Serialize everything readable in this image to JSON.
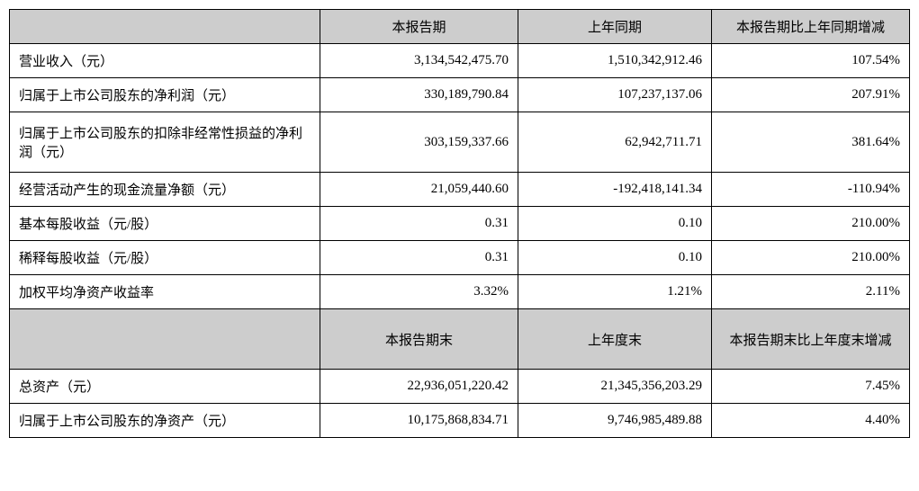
{
  "table": {
    "header1": {
      "blank": "",
      "col1": "本报告期",
      "col2": "上年同期",
      "col3": "本报告期比上年同期增减"
    },
    "rows1": [
      {
        "label": "营业收入（元）",
        "c1": "3,134,542,475.70",
        "c2": "1,510,342,912.46",
        "c3": "107.54%"
      },
      {
        "label": "归属于上市公司股东的净利润（元）",
        "c1": "330,189,790.84",
        "c2": "107,237,137.06",
        "c3": "207.91%"
      },
      {
        "label": "归属于上市公司股东的扣除非经常性损益的净利润（元）",
        "c1": "303,159,337.66",
        "c2": "62,942,711.71",
        "c3": "381.64%"
      },
      {
        "label": "经营活动产生的现金流量净额（元）",
        "c1": "21,059,440.60",
        "c2": "-192,418,141.34",
        "c3": "-110.94%"
      },
      {
        "label": "基本每股收益（元/股）",
        "c1": "0.31",
        "c2": "0.10",
        "c3": "210.00%"
      },
      {
        "label": "稀释每股收益（元/股）",
        "c1": "0.31",
        "c2": "0.10",
        "c3": "210.00%"
      },
      {
        "label": "加权平均净资产收益率",
        "c1": "3.32%",
        "c2": "1.21%",
        "c3": "2.11%"
      }
    ],
    "header2": {
      "blank": "",
      "col1": "本报告期末",
      "col2": "上年度末",
      "col3": "本报告期末比上年度末增减"
    },
    "rows2": [
      {
        "label": "总资产（元）",
        "c1": "22,936,051,220.42",
        "c2": "21,345,356,203.29",
        "c3": "7.45%"
      },
      {
        "label": "归属于上市公司股东的净资产（元）",
        "c1": "10,175,868,834.71",
        "c2": "9,746,985,489.88",
        "c3": "4.40%"
      }
    ]
  },
  "style": {
    "header_bg": "#cdcdcd",
    "border_color": "#000000",
    "font_family": "SimSun",
    "base_fontsize": 15
  }
}
